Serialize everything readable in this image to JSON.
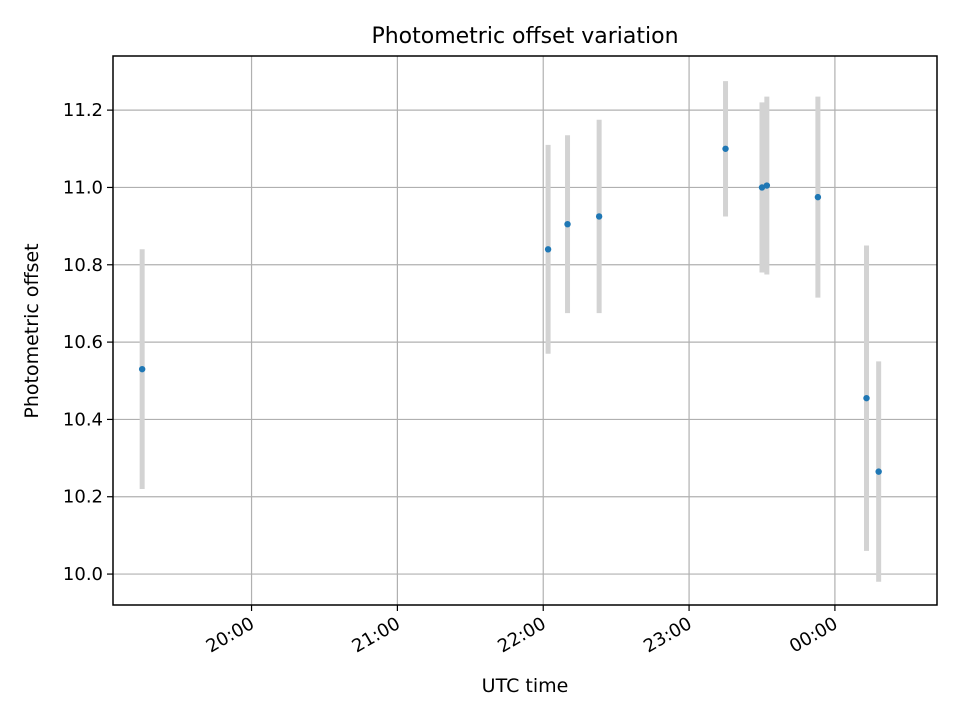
{
  "chart_data": {
    "type": "scatter",
    "title": "Photometric offset variation",
    "xlabel": "UTC time",
    "ylabel": "Photometric offset",
    "x_ticks": [
      "20:00",
      "21:00",
      "22:00",
      "23:00",
      "00:00"
    ],
    "y_ticks": [
      "10.0",
      "10.2",
      "10.4",
      "10.6",
      "10.8",
      "11.0",
      "11.2"
    ],
    "xlim": [
      "19:03",
      "00:42"
    ],
    "ylim": [
      9.92,
      11.34
    ],
    "grid": true,
    "colors": {
      "points": "#1f77b4",
      "errorbars": "#d3d3d3",
      "grid": "#b0b0b0"
    },
    "series": [
      {
        "points": [
          {
            "x": "19:15",
            "y": 10.53,
            "err": 0.31
          },
          {
            "x": "22:02",
            "y": 10.84,
            "err": 0.27
          },
          {
            "x": "22:10",
            "y": 10.905,
            "err": 0.23
          },
          {
            "x": "22:23",
            "y": 10.925,
            "err": 0.25
          },
          {
            "x": "23:15",
            "y": 11.1,
            "err": 0.175
          },
          {
            "x": "23:30",
            "y": 11.0,
            "err": 0.22
          },
          {
            "x": "23:32",
            "y": 11.005,
            "err": 0.23
          },
          {
            "x": "23:53",
            "y": 10.975,
            "err": 0.26
          },
          {
            "x": "00:13",
            "y": 10.455,
            "err": 0.395
          },
          {
            "x": "00:18",
            "y": 10.265,
            "err": 0.285
          }
        ]
      }
    ]
  }
}
